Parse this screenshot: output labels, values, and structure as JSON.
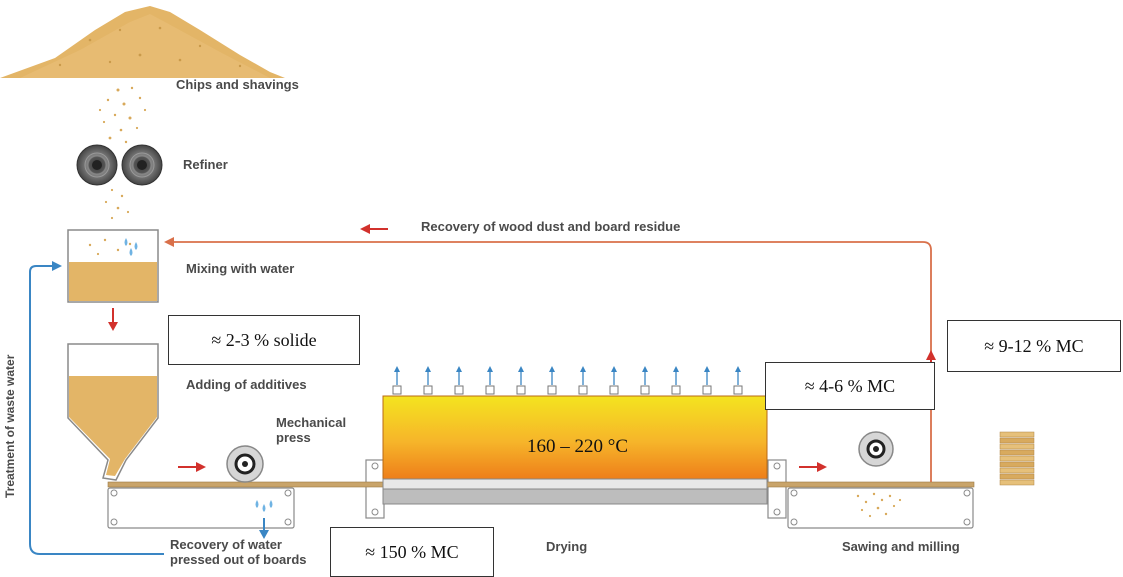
{
  "labels": {
    "chips": "Chips and shavings",
    "refiner": "Refiner",
    "mixing": "Mixing with water",
    "additives": "Adding of additives",
    "mech_press_1": "Mechanical",
    "mech_press_2": "press",
    "recovery_water_1": "Recovery of water",
    "recovery_water_2": "pressed out of boards",
    "drying": "Drying",
    "sawing": "Sawing and milling",
    "recovery_dust": "Recovery of wood dust and board residue",
    "waste_water": "Treatment of waste water"
  },
  "annotations": {
    "solide": "≈ 2-3 % solide",
    "mc_150": "≈ 150 % MC",
    "mc_4_6": "≈ 4-6 % MC",
    "mc_9_12": "≈ 9-12 % MC",
    "temperature": "160 – 220 °C"
  },
  "colors": {
    "wood": "#e3b567",
    "oven_top": "#f3e01e",
    "oven_bottom": "#ef8a1c",
    "arrow_red": "#d2312c",
    "water_blue": "#3a86c4",
    "steel": "#c8c8c8"
  }
}
